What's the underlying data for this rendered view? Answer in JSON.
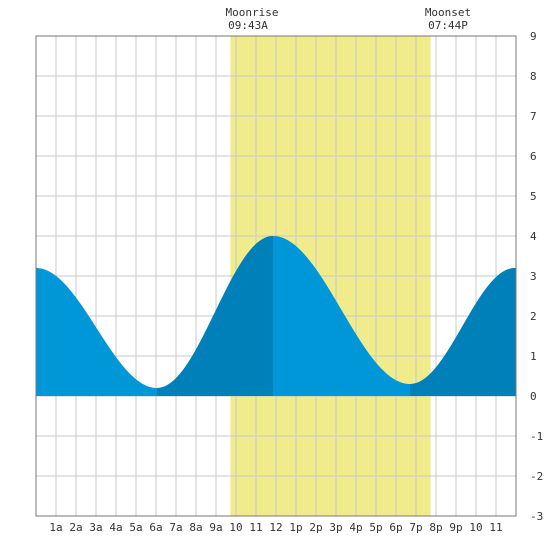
{
  "moon": {
    "rise_label": "Moonrise",
    "rise_time": "09:43A",
    "set_label": "Moonset",
    "set_time": "07:44P"
  },
  "chart_data": {
    "type": "area",
    "title": "",
    "xlabel": "",
    "ylabel": "",
    "x_tick_labels": [
      "1a",
      "2a",
      "3a",
      "4a",
      "5a",
      "6a",
      "7a",
      "8a",
      "9a",
      "10",
      "11",
      "12",
      "1p",
      "2p",
      "3p",
      "4p",
      "5p",
      "6p",
      "7p",
      "8p",
      "9p",
      "10",
      "11"
    ],
    "xlim": [
      0,
      24
    ],
    "ylim": [
      -3,
      9
    ],
    "y_ticks": [
      -3,
      -2,
      -1,
      0,
      1,
      2,
      3,
      4,
      5,
      6,
      7,
      8,
      9
    ],
    "grid": true,
    "moon_up_interval": [
      9.72,
      19.73
    ],
    "extrema": [
      {
        "x": 0.0,
        "y": 3.2
      },
      {
        "x": 6.05,
        "y": 0.2
      },
      {
        "x": 11.85,
        "y": 4.0
      },
      {
        "x": 18.7,
        "y": 0.3
      },
      {
        "x": 23.95,
        "y": 3.2
      }
    ],
    "rising_segments": [
      [
        6.05,
        11.85
      ],
      [
        18.7,
        24.0
      ]
    ],
    "colors": {
      "moon_band": "#f0ec8c",
      "falling_tide": "#0097d9",
      "rising_tide": "#0080b8",
      "grid": "#c8c8c8",
      "frame": "#777777"
    }
  }
}
